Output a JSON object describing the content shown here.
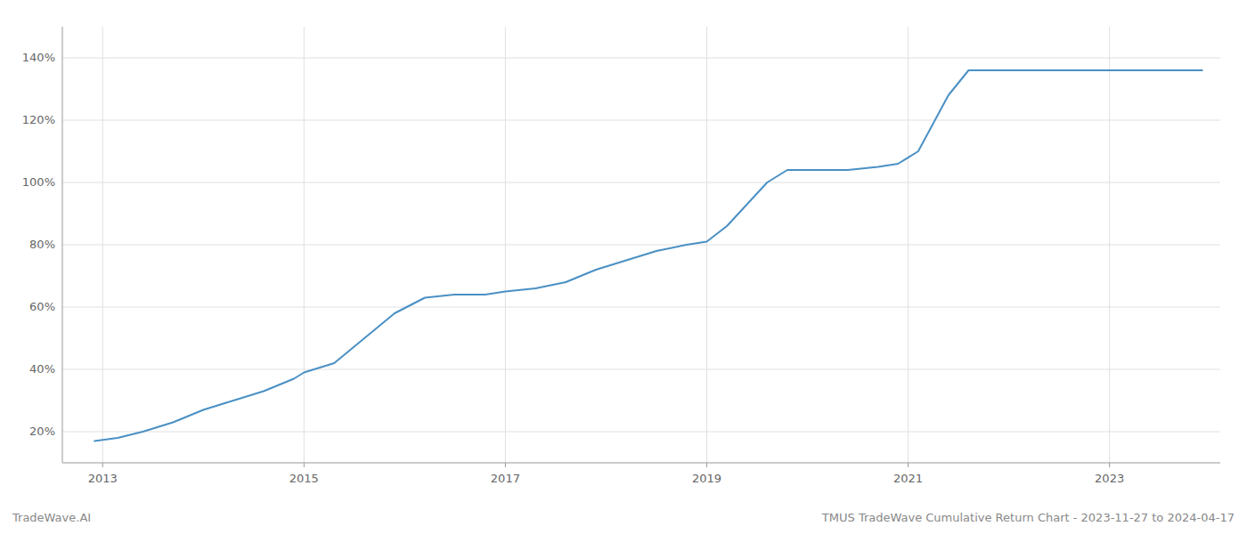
{
  "chart_data": {
    "type": "line",
    "title": "TMUS TradeWave Cumulative Return Chart - 2023-11-27 to 2024-04-17",
    "annotations": [
      "TradeWave.AI"
    ],
    "x": [
      2012.92,
      2013.15,
      2013.4,
      2013.7,
      2014.0,
      2014.3,
      2014.6,
      2014.9,
      2015.0,
      2015.3,
      2015.6,
      2015.9,
      2016.2,
      2016.5,
      2016.8,
      2017.0,
      2017.3,
      2017.6,
      2017.9,
      2018.2,
      2018.5,
      2018.8,
      2019.0,
      2019.2,
      2019.4,
      2019.6,
      2019.8,
      2020.0,
      2020.2,
      2020.4,
      2020.7,
      2020.9,
      2021.1,
      2021.4,
      2021.6,
      2022.0,
      2022.5,
      2023.0,
      2023.5,
      2023.92
    ],
    "values": [
      17,
      18,
      20,
      23,
      27,
      30,
      33,
      37,
      39,
      42,
      50,
      58,
      63,
      64,
      64,
      65,
      66,
      68,
      72,
      75,
      78,
      80,
      81,
      86,
      93,
      100,
      104,
      104,
      104,
      104,
      105,
      106,
      110,
      128,
      136,
      136,
      136,
      136,
      136,
      136
    ],
    "color": "#4a90c4",
    "xlim": [
      2012.6,
      2024.1
    ],
    "xticks": [
      2013,
      2015,
      2017,
      2019,
      2021,
      2023
    ],
    "ylim": [
      10,
      150
    ],
    "yticks": [
      {
        "value": 20,
        "label": "20%"
      },
      {
        "value": 40,
        "label": "40%"
      },
      {
        "value": 60,
        "label": "60%"
      },
      {
        "value": 80,
        "label": "80%"
      },
      {
        "value": 100,
        "label": "100%"
      },
      {
        "value": 120,
        "label": "120%"
      },
      {
        "value": 140,
        "label": "140%"
      }
    ],
    "grid": true
  }
}
